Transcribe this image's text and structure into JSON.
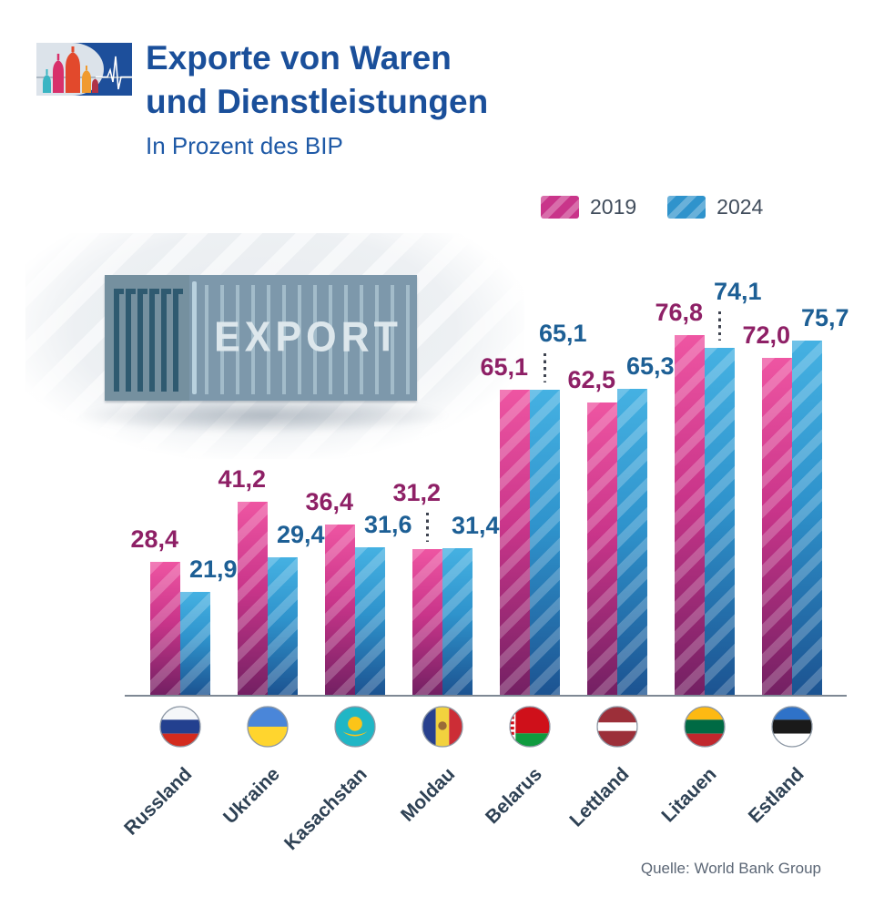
{
  "header": {
    "title_line1": "Exporte von Waren",
    "title_line2": "und Dienstleistungen",
    "subtitle": "In Prozent des BIP",
    "logo_icons": [
      "kremlin-domes-icon",
      "heartbeat-icon"
    ]
  },
  "legend_note": "legend entries mirror chart_data.series names",
  "illustration": {
    "icon": "shipping-container-icon",
    "label": "EXPORT"
  },
  "source": "Quelle: World Bank Group",
  "chart_data": {
    "type": "bar",
    "title": "Exporte von Waren und Dienstleistungen",
    "subtitle": "In Prozent des BIP",
    "unit": "Prozent des BIP",
    "categories": [
      "Russland",
      "Ukraine",
      "Kasachstan",
      "Moldau",
      "Belarus",
      "Lettland",
      "Litauen",
      "Estland"
    ],
    "flags": [
      "flag-russia",
      "flag-ukraine",
      "flag-kazakhstan",
      "flag-moldova",
      "flag-belarus",
      "flag-latvia",
      "flag-lithuania",
      "flag-estonia"
    ],
    "series": [
      {
        "name": "2019",
        "color_top": "#ee55a2",
        "color_mid": "#c9358a",
        "color_bottom": "#732063",
        "label_color": "#8e2066",
        "values": [
          28.4,
          41.2,
          36.4,
          31.2,
          65.1,
          62.5,
          76.8,
          72.0
        ],
        "callout_indices": [
          3
        ]
      },
      {
        "name": "2024",
        "color_top": "#45b1e2",
        "color_mid": "#2f93cc",
        "color_bottom": "#1c5391",
        "label_color": "#1d5f95",
        "values": [
          21.9,
          29.4,
          31.6,
          31.4,
          65.1,
          65.3,
          74.1,
          75.7
        ],
        "callout_indices": [
          4,
          6
        ]
      }
    ],
    "ylim": [
      0,
      80
    ],
    "grid": false,
    "y_axis_visible": false,
    "legend_position": "top-right",
    "value_label_format": "decimal-comma"
  }
}
